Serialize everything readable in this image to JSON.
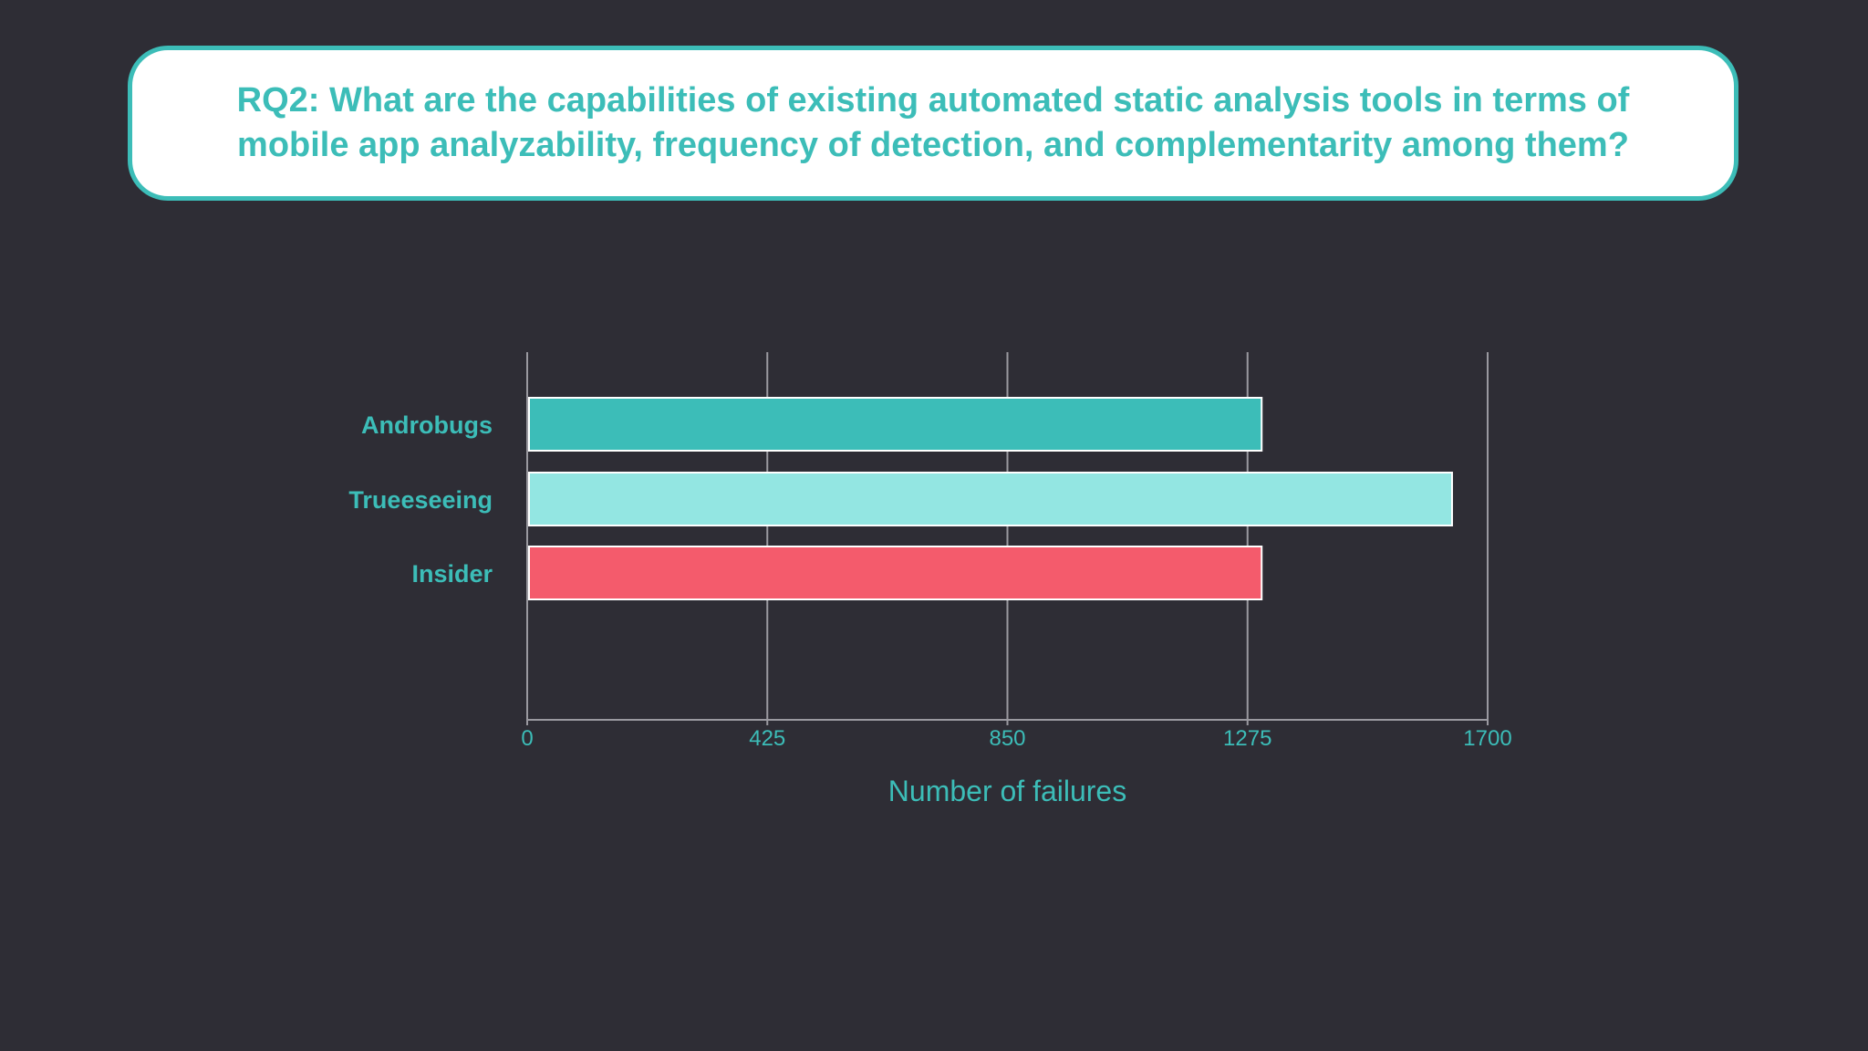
{
  "header": {
    "line1": "RQ2: What are the capabilities of existing automated static analysis tools in terms of",
    "line2": "mobile app analyzability, frequency of detection, and complementarity among them?"
  },
  "colors": {
    "background": "#2e2d35",
    "accent": "#3cbdb8",
    "grid": "#9a99a0"
  },
  "chart_data": {
    "type": "bar",
    "orientation": "horizontal",
    "title": "",
    "categories": [
      "Androbugs",
      "Trueeseeing",
      "Insider"
    ],
    "values": [
      1300,
      1637,
      1300
    ],
    "bar_colors": [
      "#3cbdb8",
      "#93e6e2",
      "#f45b6c"
    ],
    "xlabel": "Number of failures",
    "ylabel": "",
    "xlim": [
      0,
      1700
    ],
    "ticks": [
      0,
      425,
      850,
      1275,
      1700
    ],
    "tick_labels": [
      "0",
      "425",
      "850",
      "1275",
      "1700"
    ],
    "grid": true,
    "legend": "none"
  }
}
